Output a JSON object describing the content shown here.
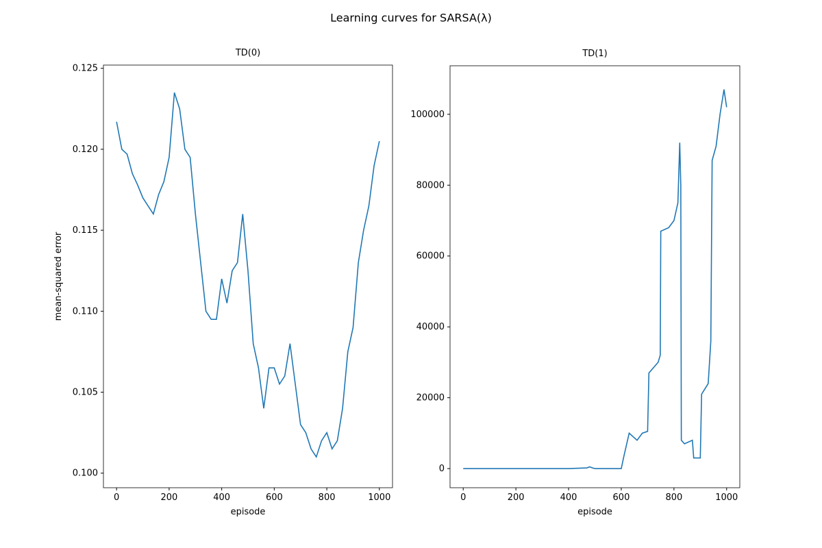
{
  "title": "Learning curves for SARSA(λ)",
  "chart_data": [
    {
      "type": "line",
      "title": "TD(0)",
      "x_label": "episode",
      "y_label": "mean-squared error",
      "x": [
        0,
        20,
        40,
        60,
        80,
        100,
        120,
        140,
        160,
        180,
        200,
        220,
        240,
        260,
        280,
        300,
        320,
        340,
        360,
        380,
        400,
        420,
        440,
        460,
        480,
        500,
        520,
        540,
        560,
        580,
        600,
        620,
        640,
        660,
        680,
        700,
        720,
        740,
        760,
        780,
        800,
        820,
        840,
        860,
        880,
        900,
        920,
        940,
        960,
        980,
        1000
      ],
      "series": [
        {
          "name": "TD(0)",
          "color": "#1f77b4",
          "values": [
            0.1217,
            0.12,
            0.1197,
            0.1185,
            0.1178,
            0.117,
            0.1165,
            0.116,
            0.1172,
            0.118,
            0.1195,
            0.1235,
            0.1225,
            0.12,
            0.1195,
            0.116,
            0.113,
            0.11,
            0.1095,
            0.1095,
            0.112,
            0.1105,
            0.1125,
            0.113,
            0.116,
            0.1125,
            0.108,
            0.1065,
            0.104,
            0.1065,
            0.1065,
            0.1055,
            0.106,
            0.108,
            0.1055,
            0.103,
            0.1025,
            0.1015,
            0.101,
            0.102,
            0.1025,
            0.1015,
            0.102,
            0.104,
            0.1075,
            0.109,
            0.113,
            0.115,
            0.1165,
            0.119,
            0.1205
          ]
        }
      ],
      "xlim": [
        -50,
        1050
      ],
      "ylim": [
        0.0991,
        0.1252
      ],
      "xticks": [
        0,
        200,
        400,
        600,
        800,
        1000
      ],
      "yticks": [
        {
          "value": 0.1,
          "label": "0.100"
        },
        0.105,
        {
          "value": 0.11,
          "label": "0.110"
        },
        0.115,
        {
          "value": 0.12,
          "label": "0.120"
        },
        0.125
      ]
    },
    {
      "type": "line",
      "title": "TD(1)",
      "x_label": "episode",
      "x": [
        0,
        100,
        200,
        300,
        400,
        470,
        480,
        490,
        500,
        600,
        610,
        630,
        660,
        680,
        700,
        705,
        740,
        748,
        750,
        780,
        800,
        815,
        822,
        826,
        828,
        840,
        870,
        875,
        900,
        905,
        930,
        940,
        945,
        960,
        975,
        990,
        1000
      ],
      "series": [
        {
          "name": "TD(1)",
          "color": "#1f77b4",
          "values": [
            0,
            0,
            0,
            0,
            0,
            200,
            500,
            200,
            0,
            0,
            3500,
            10000,
            8000,
            10000,
            10500,
            27000,
            30000,
            32000,
            67000,
            68000,
            70000,
            75000,
            92000,
            80000,
            8000,
            7000,
            8000,
            3000,
            3000,
            21000,
            24000,
            36000,
            87000,
            91000,
            100000,
            107000,
            102000
          ]
        }
      ],
      "xlim": [
        -50,
        1050
      ],
      "ylim": [
        -5400,
        113700
      ],
      "xticks": [
        0,
        200,
        400,
        600,
        800,
        1000
      ],
      "yticks": [
        0,
        20000,
        40000,
        60000,
        80000,
        100000
      ]
    }
  ]
}
